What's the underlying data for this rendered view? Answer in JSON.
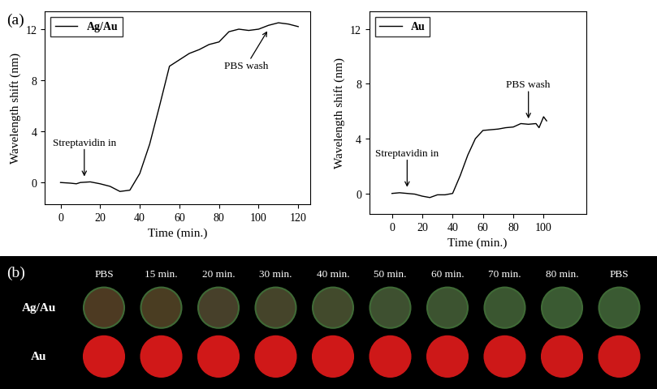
{
  "chart_data": [
    {
      "type": "line",
      "panel_label": "(a)",
      "x_label": "Time (min.)",
      "y_label": "Wavelength shift (nm)",
      "xlim": [
        -8,
        126
      ],
      "xticks": [
        0,
        20,
        40,
        60,
        80,
        100,
        120
      ],
      "ylim": [
        -1.7,
        13.4
      ],
      "yticks": [
        0,
        4,
        8,
        12
      ],
      "legend": "upper left",
      "series": [
        {
          "name": "Ag/Au",
          "color": "#000000",
          "x": [
            0,
            5,
            8,
            10,
            15,
            20,
            25,
            30,
            35,
            40,
            45,
            50,
            55,
            60,
            65,
            70,
            75,
            80,
            85,
            90,
            95,
            100,
            105,
            110,
            115,
            120
          ],
          "values": [
            0,
            -0.05,
            -0.1,
            0,
            0.05,
            -0.1,
            -0.3,
            -0.7,
            -0.6,
            0.7,
            3,
            6,
            9.1,
            9.6,
            10.1,
            10.4,
            10.8,
            11.0,
            11.8,
            12.0,
            11.9,
            12.0,
            12.3,
            12.5,
            12.4,
            12.2
          ]
        }
      ],
      "annotations": [
        {
          "text": "Streptavidin in",
          "x": 12,
          "y": 0.3,
          "direction": "down"
        },
        {
          "text": "PBS wash",
          "x": 105,
          "y": 12.0,
          "direction": "up"
        }
      ]
    },
    {
      "type": "line",
      "x_label": "Time (min.)",
      "y_label": "Wavelength shift (nm)",
      "xlim": [
        -15,
        128
      ],
      "xticks": [
        0,
        20,
        40,
        60,
        80,
        100
      ],
      "ylim": [
        -1.5,
        13.3
      ],
      "yticks": [
        0,
        4,
        8,
        12
      ],
      "legend": "upper left",
      "series": [
        {
          "name": "Au",
          "color": "#000000",
          "x": [
            0,
            5,
            10,
            15,
            20,
            25,
            30,
            35,
            40,
            45,
            50,
            55,
            60,
            65,
            70,
            75,
            80,
            85,
            90,
            95,
            97,
            100,
            102
          ],
          "values": [
            0,
            0.05,
            0,
            -0.05,
            -0.2,
            -0.3,
            -0.1,
            -0.1,
            0,
            1.3,
            2.8,
            4.0,
            4.6,
            4.65,
            4.7,
            4.8,
            4.85,
            5.1,
            5.05,
            5.1,
            4.8,
            5.6,
            5.3
          ]
        }
      ],
      "annotations": [
        {
          "text": "Streptavidin in",
          "x": 10,
          "y": 0.3,
          "direction": "down"
        },
        {
          "text": "PBS wash",
          "x": 90,
          "y": 5.3,
          "direction": "down"
        }
      ]
    }
  ],
  "image_panel": {
    "panel_label": "(b)",
    "columns": [
      "PBS",
      "15 min.",
      "20 min.",
      "30 min.",
      "40 min.",
      "50 min.",
      "60 min.",
      "70 min.",
      "80 min.",
      "PBS"
    ],
    "rows": [
      {
        "name": "Ag/Au",
        "colors": [
          "#4d3a22",
          "#4a3d22",
          "#47402a",
          "#45442a",
          "#424a2c",
          "#3e5030",
          "#3c5330",
          "#3a5630",
          "#3a5a32",
          "#3a5a32"
        ]
      },
      {
        "name": "Au",
        "colors": [
          "#d01818",
          "#d01818",
          "#d01818",
          "#cf1818",
          "#cf1818",
          "#ce1818",
          "#cd1818",
          "#cd1818",
          "#cc1818",
          "#cc1818"
        ]
      }
    ]
  }
}
